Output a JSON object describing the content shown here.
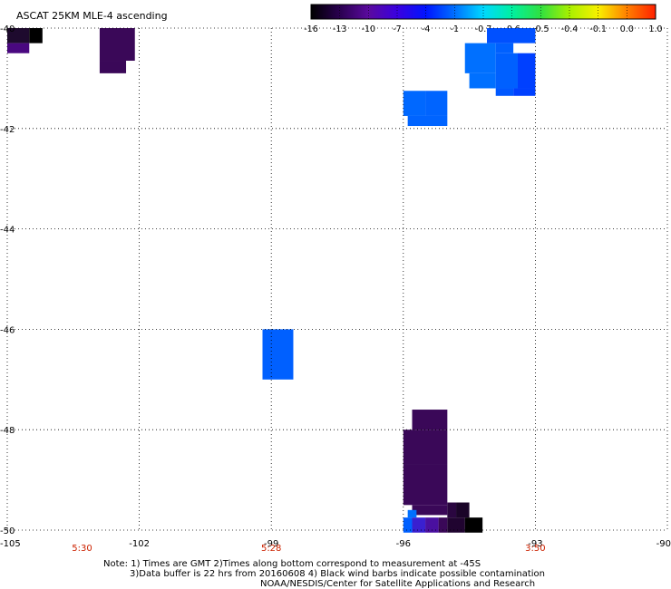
{
  "title": "ASCAT 25KM MLE-4 ascending",
  "colorbar": {
    "labels": [
      "-16",
      "-13",
      "-10",
      "-7",
      "-4",
      "-1",
      "-0.7",
      "-0.6",
      "-0.5",
      "-0.4",
      "-0.1",
      "0.0",
      "1.0"
    ],
    "stops": [
      "#000000",
      "#2a0050",
      "#5a0a9e",
      "#3a00e0",
      "#0014ff",
      "#0070ff",
      "#00d8ff",
      "#00f0a0",
      "#30e040",
      "#a8f000",
      "#f8f000",
      "#ff8000",
      "#ff2000"
    ]
  },
  "axes": {
    "x_ticks": [
      {
        "lon": -105,
        "label": "-105"
      },
      {
        "lon": -102,
        "label": "-102"
      },
      {
        "lon": -99,
        "label": "-99"
      },
      {
        "lon": -96,
        "label": "-96"
      },
      {
        "lon": -93,
        "label": "-93"
      },
      {
        "lon": -90,
        "label": "-90"
      }
    ],
    "y_ticks": [
      {
        "lat": -40,
        "label": "-40"
      },
      {
        "lat": -42,
        "label": "-42"
      },
      {
        "lat": -44,
        "label": "-44"
      },
      {
        "lat": -46,
        "label": "-46"
      },
      {
        "lat": -48,
        "label": "-48"
      },
      {
        "lat": -50,
        "label": "-50"
      }
    ],
    "lon_range": [
      -105,
      -90
    ],
    "lat_range": [
      -50,
      -40
    ],
    "grid": "dotted"
  },
  "time_labels": [
    {
      "lon": -103.3,
      "label": "5:30"
    },
    {
      "lon": -99,
      "label": "5:28"
    },
    {
      "lon": -93,
      "label": "3:50"
    }
  ],
  "notes": [
    "Note: 1) Times are GMT 2)Times along bottom correspond to measurement at -45S",
    "3)Data buffer is 22 hrs from 20160608 4) Black wind barbs indicate possible contamination",
    "NOAA/NESDIS/Center for Satellite Applications and Research"
  ],
  "cells": [
    {
      "lon1": -105.0,
      "lon2": -104.5,
      "lat1": -40.3,
      "lat2": -40.0,
      "color": "#1e0a2e"
    },
    {
      "lon1": -104.5,
      "lon2": -104.2,
      "lat1": -40.3,
      "lat2": -40.0,
      "color": "#000000"
    },
    {
      "lon1": -105.0,
      "lon2": -104.5,
      "lat1": -40.5,
      "lat2": -40.3,
      "color": "#4a0880"
    },
    {
      "lon1": -102.9,
      "lon2": -102.1,
      "lat1": -40.65,
      "lat2": -40.0,
      "color": "#3a0858"
    },
    {
      "lon1": -102.9,
      "lon2": -102.3,
      "lat1": -40.9,
      "lat2": -40.65,
      "color": "#3a0858"
    },
    {
      "lon1": -94.1,
      "lon2": -93.0,
      "lat1": -40.3,
      "lat2": -40.0,
      "color": "#0050ff"
    },
    {
      "lon1": -94.6,
      "lon2": -93.9,
      "lat1": -40.9,
      "lat2": -40.3,
      "color": "#0070ff"
    },
    {
      "lon1": -93.9,
      "lon2": -93.5,
      "lat1": -40.5,
      "lat2": -40.3,
      "color": "#0060ff"
    },
    {
      "lon1": -94.5,
      "lon2": -93.9,
      "lat1": -41.2,
      "lat2": -40.9,
      "color": "#0070ff"
    },
    {
      "lon1": -93.9,
      "lon2": -93.4,
      "lat1": -41.2,
      "lat2": -40.5,
      "color": "#0060ff"
    },
    {
      "lon1": -93.4,
      "lon2": -93.0,
      "lat1": -41.2,
      "lat2": -40.5,
      "color": "#0040ff"
    },
    {
      "lon1": -93.5,
      "lon2": -93.0,
      "lat1": -41.35,
      "lat2": -41.2,
      "color": "#0040ff"
    },
    {
      "lon1": -93.9,
      "lon2": -93.5,
      "lat1": -41.35,
      "lat2": -41.2,
      "color": "#0058ff"
    },
    {
      "lon1": -96.0,
      "lon2": -95.5,
      "lat1": -41.75,
      "lat2": -41.25,
      "color": "#0068ff"
    },
    {
      "lon1": -95.5,
      "lon2": -95.0,
      "lat1": -41.75,
      "lat2": -41.25,
      "color": "#0064ff"
    },
    {
      "lon1": -95.9,
      "lon2": -95.0,
      "lat1": -41.95,
      "lat2": -41.75,
      "color": "#0064ff"
    },
    {
      "lon1": -99.2,
      "lon2": -98.5,
      "lat1": -47.0,
      "lat2": -46.0,
      "color": "#0060ff"
    },
    {
      "lon1": -95.8,
      "lon2": -95.0,
      "lat1": -48.0,
      "lat2": -47.6,
      "color": "#3a0858"
    },
    {
      "lon1": -96.0,
      "lon2": -95.0,
      "lat1": -48.7,
      "lat2": -48.0,
      "color": "#3a0858"
    },
    {
      "lon1": -96.0,
      "lon2": -95.0,
      "lat1": -49.5,
      "lat2": -48.7,
      "color": "#3a0858"
    },
    {
      "lon1": -95.8,
      "lon2": -95.0,
      "lat1": -49.7,
      "lat2": -49.5,
      "color": "#3a0858"
    },
    {
      "lon1": -95.0,
      "lon2": -94.8,
      "lat1": -49.75,
      "lat2": -49.45,
      "color": "#2a0640"
    },
    {
      "lon1": -94.8,
      "lon2": -94.5,
      "lat1": -49.75,
      "lat2": -49.45,
      "color": "#1a0428"
    },
    {
      "lon1": -96.0,
      "lon2": -95.8,
      "lat1": -50.05,
      "lat2": -49.75,
      "color": "#0060ff"
    },
    {
      "lon1": -95.8,
      "lon2": -95.5,
      "lat1": -50.05,
      "lat2": -49.75,
      "color": "#3a20d0"
    },
    {
      "lon1": -95.5,
      "lon2": -95.2,
      "lat1": -50.05,
      "lat2": -49.75,
      "color": "#4a10a0"
    },
    {
      "lon1": -95.2,
      "lon2": -95.0,
      "lat1": -50.05,
      "lat2": -49.75,
      "color": "#3a0858"
    },
    {
      "lon1": -95.0,
      "lon2": -94.6,
      "lat1": -50.05,
      "lat2": -49.75,
      "color": "#200430"
    },
    {
      "lon1": -94.6,
      "lon2": -94.2,
      "lat1": -50.05,
      "lat2": -49.75,
      "color": "#000000"
    },
    {
      "lon1": -95.9,
      "lon2": -95.7,
      "lat1": -49.75,
      "lat2": -49.6,
      "color": "#0070ff"
    }
  ]
}
